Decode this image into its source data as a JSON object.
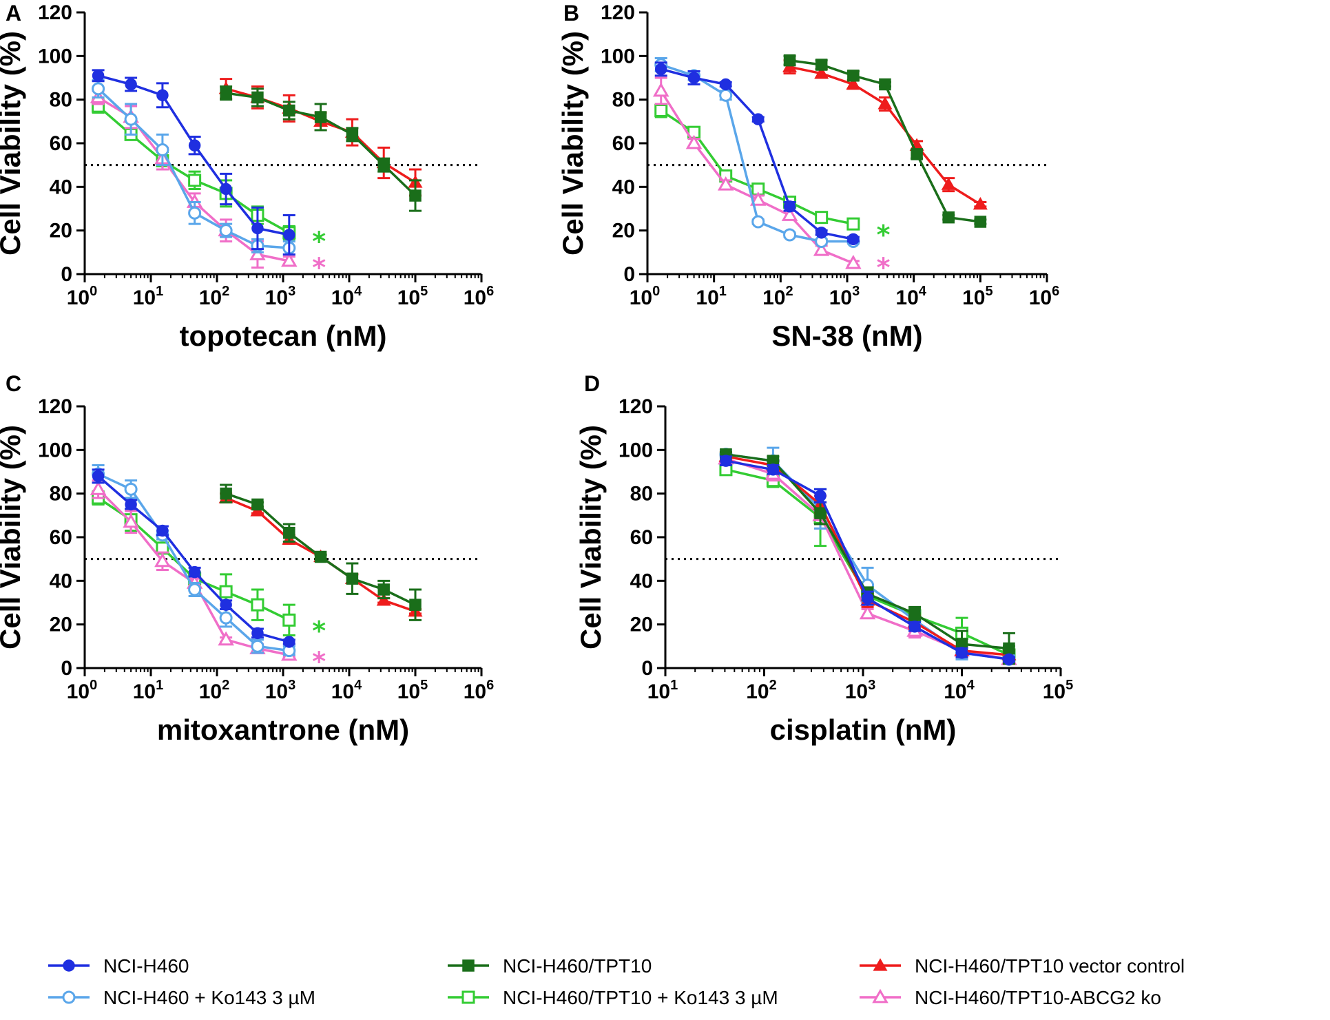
{
  "colors": {
    "NCI-H460": "#1f2fe0",
    "NCI-H460 + Ko143 3 µM": "#5aa6ea",
    "NCI-H460/TPT10": "#1a6e1a",
    "NCI-H460/TPT10 + Ko143 3 µM": "#33cc33",
    "NCI-H460/TPT10 vector control": "#ee1c1c",
    "NCI-H460/TPT10-ABCG2 ko": "#f06ec8"
  },
  "legend": [
    {
      "label": "NCI-H460",
      "marker": "circle-filled"
    },
    {
      "label": "NCI-H460/TPT10",
      "marker": "square-filled"
    },
    {
      "label": "NCI-H460/TPT10 vector control",
      "marker": "triangle-filled"
    },
    {
      "label": "NCI-H460 + Ko143 3 µM",
      "marker": "circle-open"
    },
    {
      "label": "NCI-H460/TPT10 + Ko143 3 µM",
      "marker": "square-open"
    },
    {
      "label": "NCI-H460/TPT10-ABCG2 ko",
      "marker": "triangle-open"
    }
  ],
  "chart_data": [
    {
      "panel": "A",
      "type": "line",
      "xlabel": "topotecan (nM)",
      "ylabel": "Cell Viability (%)",
      "xscale": "log",
      "xlim_exp": [
        0,
        6
      ],
      "ylim": [
        0,
        120
      ],
      "yticks": [
        0,
        20,
        40,
        60,
        80,
        100,
        120
      ],
      "reference_line": 50,
      "annotations": [
        {
          "text": "*",
          "series": "NCI-H460/TPT10 + Ko143 3 µM",
          "x": 3500,
          "y": 16
        },
        {
          "text": "*",
          "series": "NCI-H460/TPT10-ABCG2 ko",
          "x": 3500,
          "y": 4
        }
      ],
      "series": [
        {
          "name": "NCI-H460",
          "x": [
            1.6,
            5,
            15,
            46,
            137,
            411,
            1235
          ],
          "y": [
            91,
            87,
            82,
            59,
            39,
            21,
            18
          ],
          "err": [
            2.5,
            3,
            5.5,
            4,
            7,
            9.5,
            9
          ]
        },
        {
          "name": "NCI-H460 + Ko143 3 µM",
          "x": [
            1.6,
            5,
            15,
            46,
            137,
            411,
            1235
          ],
          "y": [
            85,
            71,
            57,
            28,
            20,
            13,
            12
          ],
          "err": [
            4,
            7,
            7,
            5,
            3,
            3,
            3
          ]
        },
        {
          "name": "NCI-H460/TPT10",
          "x": [
            137,
            411,
            1235,
            3704,
            11111,
            33333,
            100000
          ],
          "y": [
            83,
            81,
            75,
            72,
            64,
            50,
            36
          ],
          "err": [
            3,
            4,
            4,
            6,
            3,
            3,
            7
          ]
        },
        {
          "name": "NCI-H460/TPT10 + Ko143 3 µM",
          "x": [
            1.6,
            5,
            15,
            46,
            137,
            411,
            1235
          ],
          "y": [
            77,
            64,
            52,
            43,
            37,
            27,
            19
          ],
          "err": [
            3,
            2,
            4,
            4,
            6,
            4,
            3
          ]
        },
        {
          "name": "NCI-H460/TPT10 vector control",
          "x": [
            137,
            411,
            1235,
            3704,
            11111,
            33333,
            100000
          ],
          "y": [
            85,
            81,
            76,
            70,
            65,
            51,
            42
          ],
          "err": [
            4.5,
            5,
            6,
            4,
            6,
            7,
            6
          ]
        },
        {
          "name": "NCI-H460/TPT10-ABCG2 ko",
          "x": [
            1.6,
            5,
            15,
            46,
            137,
            411,
            1235
          ],
          "y": [
            81,
            72,
            53,
            33,
            20,
            9,
            6
          ],
          "err": [
            3,
            5,
            5,
            4,
            5,
            6,
            2
          ]
        }
      ]
    },
    {
      "panel": "B",
      "type": "line",
      "xlabel": "SN-38 (nM)",
      "ylabel": "Cell Viability (%)",
      "xscale": "log",
      "xlim_exp": [
        0,
        6
      ],
      "ylim": [
        0,
        120
      ],
      "yticks": [
        0,
        20,
        40,
        60,
        80,
        100,
        120
      ],
      "reference_line": 50,
      "annotations": [
        {
          "text": "*",
          "series": "NCI-H460/TPT10 + Ko143 3 µM",
          "x": 3500,
          "y": 19
        },
        {
          "text": "*",
          "series": "NCI-H460/TPT10-ABCG2 ko",
          "x": 3500,
          "y": 4
        }
      ],
      "series": [
        {
          "name": "NCI-H460",
          "x": [
            1.6,
            5,
            15,
            46,
            137,
            411,
            1235
          ],
          "y": [
            94,
            90,
            87,
            71,
            31,
            19,
            16
          ],
          "err": [
            3,
            3,
            1,
            1,
            2,
            1,
            1
          ]
        },
        {
          "name": "NCI-H460 + Ko143 3 µM",
          "x": [
            1.6,
            5,
            15,
            46,
            137,
            411,
            1235
          ],
          "y": [
            96,
            91,
            82,
            24,
            18,
            15,
            15
          ],
          "err": [
            3,
            2,
            2,
            1,
            1,
            1,
            1
          ]
        },
        {
          "name": "NCI-H460/TPT10",
          "x": [
            137,
            411,
            1235,
            3704,
            11111,
            33333,
            100000
          ],
          "y": [
            98,
            96,
            91,
            87,
            55,
            26,
            24
          ],
          "err": [
            2,
            2,
            2,
            1,
            2,
            1,
            1
          ]
        },
        {
          "name": "NCI-H460/TPT10 + Ko143 3 µM",
          "x": [
            1.6,
            5,
            15,
            46,
            137,
            411,
            1235
          ],
          "y": [
            75,
            65,
            45,
            39,
            33,
            26,
            23
          ],
          "err": [
            3,
            2,
            2,
            1,
            1,
            1,
            1
          ]
        },
        {
          "name": "NCI-H460/TPT10 vector control",
          "x": [
            137,
            411,
            1235,
            3704,
            11111,
            33333,
            100000
          ],
          "y": [
            95,
            92,
            87,
            78,
            59,
            41,
            32
          ],
          "err": [
            3,
            2,
            2,
            3,
            2,
            3,
            1
          ]
        },
        {
          "name": "NCI-H460/TPT10-ABCG2 ko",
          "x": [
            1.6,
            5,
            15,
            46,
            137,
            411,
            1235
          ],
          "y": [
            84,
            60,
            41,
            34,
            27,
            11,
            5
          ],
          "err": [
            6,
            2,
            2,
            2,
            2,
            2,
            1
          ]
        }
      ]
    },
    {
      "panel": "C",
      "type": "line",
      "xlabel": "mitoxantrone (nM)",
      "ylabel": "Cell Viability (%)",
      "xscale": "log",
      "xlim_exp": [
        0,
        6
      ],
      "ylim": [
        0,
        120
      ],
      "yticks": [
        0,
        20,
        40,
        60,
        80,
        100,
        120
      ],
      "reference_line": 50,
      "annotations": [
        {
          "text": "*",
          "series": "NCI-H460/TPT10 + Ko143 3 µM",
          "x": 3500,
          "y": 18
        },
        {
          "text": "*",
          "series": "NCI-H460/TPT10-ABCG2 ko",
          "x": 3500,
          "y": 4
        }
      ],
      "series": [
        {
          "name": "NCI-H460",
          "x": [
            1.6,
            5,
            15,
            46,
            137,
            411,
            1235
          ],
          "y": [
            88,
            75,
            63,
            44,
            29,
            16,
            12
          ],
          "err": [
            3,
            2,
            2,
            2,
            2,
            2,
            1
          ]
        },
        {
          "name": "NCI-H460 + Ko143 3 µM",
          "x": [
            1.6,
            5,
            15,
            46,
            137,
            411,
            1235
          ],
          "y": [
            89,
            82,
            61,
            36,
            23,
            10,
            8
          ],
          "err": [
            4,
            4,
            2,
            3,
            4,
            3,
            2
          ]
        },
        {
          "name": "NCI-H460/TPT10",
          "x": [
            137,
            411,
            1235,
            3704,
            11111,
            33333,
            100000
          ],
          "y": [
            80,
            75,
            62,
            51,
            41,
            36,
            29
          ],
          "err": [
            4,
            1,
            4,
            1,
            7,
            4,
            7
          ]
        },
        {
          "name": "NCI-H460/TPT10 + Ko143 3 µM",
          "x": [
            1.6,
            5,
            15,
            46,
            137,
            411,
            1235
          ],
          "y": [
            78,
            68,
            55,
            41,
            35,
            29,
            22
          ],
          "err": [
            3,
            5,
            2,
            3,
            8,
            7,
            7
          ]
        },
        {
          "name": "NCI-H460/TPT10 vector control",
          "x": [
            137,
            411,
            1235,
            3704,
            11111,
            33333,
            100000
          ],
          "y": [
            78,
            72,
            59,
            51,
            41,
            31,
            26
          ],
          "err": [
            2,
            1,
            2,
            1,
            2,
            1,
            1
          ]
        },
        {
          "name": "NCI-H460/TPT10-ABCG2 ko",
          "x": [
            1.6,
            5,
            15,
            46,
            137,
            411,
            1235
          ],
          "y": [
            82,
            67,
            49,
            39,
            13,
            9,
            6
          ],
          "err": [
            4,
            5,
            4,
            2,
            1,
            2,
            1
          ]
        }
      ]
    },
    {
      "panel": "D",
      "type": "line",
      "xlabel": "cisplatin (nM)",
      "ylabel": "Cell Viability (%)",
      "xscale": "log",
      "xlim_exp": [
        1,
        5
      ],
      "ylim": [
        0,
        120
      ],
      "yticks": [
        0,
        20,
        40,
        60,
        80,
        100,
        120
      ],
      "reference_line": 50,
      "annotations": [],
      "series": [
        {
          "name": "NCI-H460",
          "x": [
            41,
            123,
            370,
            1111,
            3333,
            10000,
            30000
          ],
          "y": [
            95,
            91,
            79,
            32,
            19,
            7,
            4
          ],
          "err": [
            2,
            2,
            3,
            3,
            2,
            2,
            1
          ]
        },
        {
          "name": "NCI-H460 + Ko143 3 µM",
          "x": [
            41,
            123,
            370,
            1111,
            3333,
            10000,
            30000
          ],
          "y": [
            98,
            95,
            73,
            38,
            22,
            7,
            4
          ],
          "err": [
            2,
            6,
            9,
            8,
            4,
            3,
            2
          ]
        },
        {
          "name": "NCI-H460/TPT10",
          "x": [
            41,
            123,
            370,
            1111,
            3333,
            10000,
            30000
          ],
          "y": [
            98,
            95,
            71,
            34,
            25,
            11,
            9
          ],
          "err": [
            1,
            2,
            5,
            3,
            3,
            6,
            7
          ]
        },
        {
          "name": "NCI-H460/TPT10 + Ko143 3 µM",
          "x": [
            41,
            123,
            370,
            1111,
            3333,
            10000,
            30000
          ],
          "y": [
            91,
            86,
            69,
            33,
            24,
            16,
            6
          ],
          "err": [
            2,
            3,
            13,
            4,
            3,
            7,
            4
          ]
        },
        {
          "name": "NCI-H460/TPT10 vector control",
          "x": [
            41,
            123,
            370,
            1111,
            3333,
            10000,
            30000
          ],
          "y": [
            97,
            93,
            75,
            31,
            21,
            8,
            6
          ],
          "err": [
            2,
            2,
            4,
            3,
            3,
            2,
            2
          ]
        },
        {
          "name": "NCI-H460/TPT10-ABCG2 ko",
          "x": [
            41,
            123,
            370,
            1111,
            3333,
            10000,
            30000
          ],
          "y": [
            96,
            89,
            70,
            25,
            17,
            8,
            4
          ],
          "err": [
            2,
            3,
            6,
            2,
            3,
            2,
            1
          ]
        }
      ]
    }
  ]
}
